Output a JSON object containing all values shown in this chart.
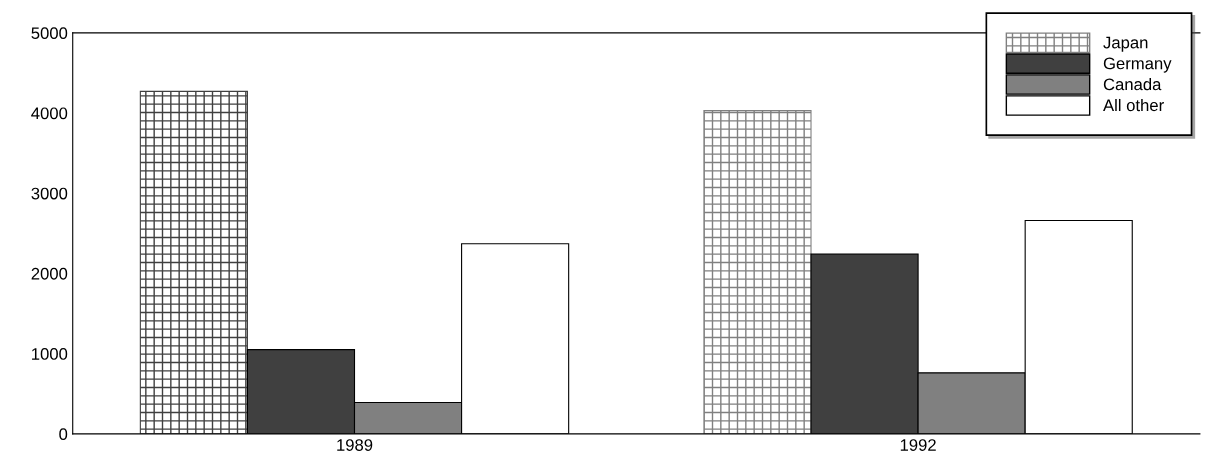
{
  "chart_data": {
    "type": "bar",
    "categories": [
      "1989",
      "1992"
    ],
    "series": [
      {
        "name": "Japan",
        "color": "#808080",
        "colors": [
          "#404040",
          "#808080"
        ],
        "values": [
          4270,
          4030
        ]
      },
      {
        "name": "Germany",
        "color": "#404040",
        "values": [
          1050,
          2240
        ]
      },
      {
        "name": "Canada",
        "color": "#808080",
        "values": [
          390,
          760
        ]
      },
      {
        "name": "All other",
        "color": "#ffffff",
        "values": [
          2370,
          2660
        ]
      }
    ],
    "ylim": [
      0,
      5000
    ],
    "yticks": [
      0,
      1000,
      2000,
      3000,
      4000,
      5000
    ],
    "grid": false,
    "legend": "top right"
  }
}
